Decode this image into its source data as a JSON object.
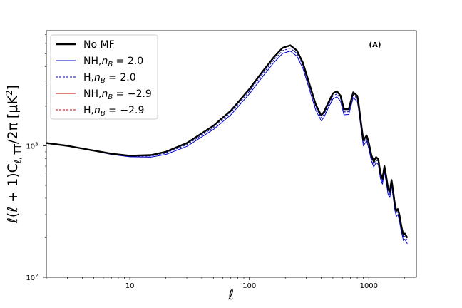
{
  "chart_data": {
    "type": "line",
    "title": "",
    "panel_label": "(A)",
    "xlabel": "ℓ",
    "ylabel": "ℓ(ℓ + 1)C",
    "ylabel_sub": "ℓ, TT",
    "ylabel_tail": "/2π [μK",
    "ylabel_sup": "2",
    "ylabel_end": "]",
    "xscale": "log",
    "yscale": "log",
    "xlim": [
      2,
      2500
    ],
    "ylim": [
      100,
      7500
    ],
    "grid": false,
    "legend_placement": "upper left",
    "x_ticks": [
      {
        "value": 10,
        "label": "10"
      },
      {
        "value": 100,
        "label": "100"
      },
      {
        "value": 1000,
        "label": "1000"
      }
    ],
    "y_ticks": [
      {
        "value": 100,
        "label": "10",
        "sup": "2"
      },
      {
        "value": 1000,
        "label": "10",
        "sup": "3"
      }
    ],
    "series": [
      {
        "name": "No MF",
        "color": "#000000",
        "style": "solid",
        "x": [
          2,
          3,
          5,
          7,
          10,
          15,
          20,
          30,
          50,
          70,
          100,
          130,
          160,
          190,
          220,
          250,
          280,
          320,
          360,
          400,
          420,
          460,
          500,
          540,
          580,
          620,
          680,
          740,
          800,
          820,
          860,
          900,
          960,
          1000,
          1050,
          1100,
          1150,
          1200,
          1250,
          1300,
          1350,
          1400,
          1450,
          1500,
          1550,
          1600,
          1650,
          1700,
          1750,
          1800,
          1850,
          1900,
          1950,
          2000,
          2100
        ],
        "y": [
          1050,
          1000,
          920,
          870,
          840,
          850,
          900,
          1050,
          1420,
          1850,
          2700,
          3700,
          4700,
          5550,
          5800,
          5300,
          4300,
          2900,
          2050,
          1700,
          1800,
          2150,
          2500,
          2600,
          2400,
          1900,
          1900,
          2550,
          2400,
          2100,
          1500,
          1100,
          1200,
          1050,
          850,
          760,
          820,
          790,
          620,
          560,
          700,
          580,
          470,
          450,
          550,
          450,
          360,
          320,
          330,
          300,
          260,
          230,
          210,
          215,
          200
        ]
      },
      {
        "name": "NH, n_B = 2.0",
        "name_prefix": "NH,",
        "name_var": "n",
        "name_sub": "B",
        "name_value": " = 2.0",
        "color": "#0000cc",
        "style": "solid",
        "x": [
          2,
          3,
          5,
          7,
          10,
          15,
          20,
          30,
          50,
          70,
          100,
          130,
          160,
          190,
          220,
          250,
          280,
          320,
          360,
          400,
          420,
          460,
          500,
          540,
          580,
          620,
          680,
          740,
          800,
          820,
          860,
          900,
          960,
          1000,
          1050,
          1100,
          1150,
          1200,
          1250,
          1300,
          1350,
          1400,
          1450,
          1500,
          1550,
          1600,
          1650,
          1700,
          1750,
          1800,
          1850,
          1900,
          1950,
          2000,
          2100
        ],
        "y": [
          1050,
          1000,
          915,
          860,
          825,
          820,
          860,
          990,
          1330,
          1720,
          2480,
          3380,
          4280,
          5030,
          5250,
          4800,
          3900,
          2640,
          1860,
          1550,
          1640,
          1960,
          2270,
          2360,
          2180,
          1720,
          1730,
          2320,
          2180,
          1900,
          1360,
          1000,
          1090,
          950,
          770,
          690,
          745,
          720,
          565,
          510,
          635,
          525,
          425,
          405,
          500,
          405,
          325,
          290,
          300,
          270,
          235,
          210,
          190,
          195,
          180
        ]
      },
      {
        "name": "H, n_B = 2.0",
        "name_prefix": "H,",
        "name_var": "n",
        "name_sub": "B",
        "name_value": " = 2.0",
        "color": "#0000cc",
        "style": "dashed",
        "x": [
          2,
          3,
          5,
          7,
          10,
          15,
          20,
          30,
          50,
          70,
          100,
          130,
          160,
          190,
          220,
          250,
          280,
          320,
          360,
          400,
          420,
          460,
          500,
          540,
          580,
          620,
          680,
          740,
          800,
          820,
          860,
          900,
          960,
          1000,
          1050,
          1100,
          1150,
          1200,
          1250,
          1300,
          1350,
          1400,
          1450,
          1500,
          1550,
          1600,
          1650,
          1700,
          1750,
          1800,
          1850,
          1900,
          1950,
          2000,
          2100
        ],
        "y": [
          1050,
          1000,
          918,
          865,
          832,
          835,
          880,
          1020,
          1375,
          1785,
          2590,
          3540,
          4490,
          5290,
          5520,
          5050,
          4100,
          2770,
          1960,
          1625,
          1720,
          2055,
          2385,
          2480,
          2290,
          1810,
          1815,
          2435,
          2290,
          2000,
          1430,
          1050,
          1145,
          1000,
          810,
          725,
          782,
          755,
          592,
          535,
          668,
          552,
          447,
          428,
          525,
          428,
          343,
          305,
          315,
          285,
          248,
          220,
          200,
          205,
          190
        ]
      },
      {
        "name": "NH, n_B = −2.9",
        "name_prefix": "NH,",
        "name_var": "n",
        "name_sub": "B",
        "name_value": " = −2.9",
        "color": "#cc0000",
        "style": "solid",
        "x": [
          2,
          3,
          5,
          7,
          10,
          15,
          20,
          30,
          50,
          70,
          100,
          130,
          160,
          190,
          220,
          250,
          280,
          320,
          360,
          400,
          420,
          460,
          500,
          540,
          580,
          620,
          680,
          740,
          800,
          820,
          860,
          900,
          960,
          1000,
          1050,
          1100,
          1150,
          1200,
          1250,
          1300,
          1350,
          1400,
          1450,
          1500,
          1550,
          1600,
          1650,
          1700,
          1750,
          1800,
          1850,
          1900,
          1950,
          2000,
          2100
        ],
        "y": [
          1050,
          1000,
          920,
          869,
          839,
          849,
          898,
          1048,
          1417,
          1846,
          2695,
          3694,
          4692,
          5540,
          5790,
          5290,
          4292,
          2895,
          2046,
          1697,
          1797,
          2146,
          2495,
          2595,
          2395,
          1897,
          1897,
          2545,
          2395,
          2096,
          1497,
          1098,
          1198,
          1048,
          849,
          759,
          819,
          789,
          619,
          559,
          699,
          579,
          469,
          449,
          549,
          449,
          359,
          319,
          329,
          299,
          259,
          229,
          209,
          214,
          199
        ]
      },
      {
        "name": "H, n_B = −2.9",
        "name_prefix": "H,",
        "name_var": "n",
        "name_sub": "B",
        "name_value": " = −2.9",
        "color": "#cc0000",
        "style": "dashed",
        "x": [
          2,
          3,
          5,
          7,
          10,
          15,
          20,
          30,
          50,
          70,
          100,
          130,
          160,
          190,
          220,
          250,
          280,
          320,
          360,
          400,
          420,
          460,
          500,
          540,
          580,
          620,
          680,
          740,
          800,
          820,
          860,
          900,
          960,
          1000,
          1050,
          1100,
          1150,
          1200,
          1250,
          1300,
          1350,
          1400,
          1450,
          1500,
          1550,
          1600,
          1650,
          1700,
          1750,
          1800,
          1850,
          1900,
          1950,
          2000,
          2100
        ],
        "y": [
          1050,
          1000,
          920,
          869,
          839,
          849,
          898,
          1048,
          1417,
          1846,
          2695,
          3694,
          4692,
          5540,
          5790,
          5290,
          4292,
          2895,
          2046,
          1697,
          1797,
          2146,
          2495,
          2595,
          2395,
          1897,
          1897,
          2545,
          2395,
          2096,
          1497,
          1098,
          1198,
          1048,
          849,
          759,
          819,
          789,
          619,
          559,
          699,
          579,
          469,
          449,
          549,
          449,
          359,
          319,
          329,
          299,
          259,
          229,
          209,
          214,
          199
        ]
      }
    ]
  }
}
